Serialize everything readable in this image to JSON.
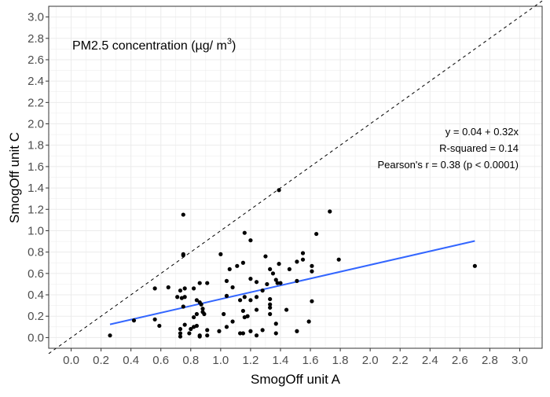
{
  "chart_data": {
    "type": "scatter",
    "title": "",
    "xlabel": "SmogOff unit A",
    "ylabel": "SmogOff unit C",
    "xlim": [
      -0.15,
      3.15
    ],
    "ylim": [
      -0.1,
      3.1
    ],
    "grid": true,
    "xticks": [
      "0.0",
      "0.2",
      "0.4",
      "0.6",
      "0.8",
      "1.0",
      "1.2",
      "1.4",
      "1.6",
      "1.8",
      "2.0",
      "2.2",
      "2.4",
      "2.6",
      "2.8",
      "3.0"
    ],
    "yticks": [
      "0.0",
      "0.2",
      "0.4",
      "0.6",
      "0.8",
      "1.0",
      "1.2",
      "1.4",
      "1.6",
      "1.8",
      "2.0",
      "2.2",
      "2.4",
      "2.6",
      "2.8",
      "3.0"
    ],
    "annotation_title": "PM2.5 concentration (µg/ m",
    "annotation_title_sup": "3",
    "annotation_title_end": ")",
    "stats": [
      "y = 0.04 + 0.32x",
      "R-squared = 0.14",
      "Pearson's r = 0.38 (p < 0.0001)"
    ],
    "identity_line": {
      "slope": 1,
      "intercept": 0,
      "style": "dashed",
      "color": "#000000"
    },
    "fit_line": {
      "intercept": 0.04,
      "slope": 0.32,
      "x_range": [
        0.26,
        2.7
      ],
      "color": "#3366FF"
    },
    "point_color": "#000000",
    "points": [
      [
        0.26,
        0.02
      ],
      [
        0.75,
        1.15
      ],
      [
        0.75,
        0.77
      ],
      [
        0.75,
        0.78
      ],
      [
        1.0,
        0.78
      ],
      [
        1.16,
        0.98
      ],
      [
        1.2,
        0.91
      ],
      [
        1.3,
        0.76
      ],
      [
        1.06,
        0.64
      ],
      [
        1.11,
        0.67
      ],
      [
        1.15,
        0.7
      ],
      [
        1.33,
        0.64
      ],
      [
        1.35,
        0.6
      ],
      [
        1.39,
        0.69
      ],
      [
        1.46,
        0.64
      ],
      [
        1.51,
        0.71
      ],
      [
        0.56,
        0.46
      ],
      [
        0.65,
        0.47
      ],
      [
        0.73,
        0.44
      ],
      [
        0.76,
        0.46
      ],
      [
        0.82,
        0.46
      ],
      [
        0.86,
        0.51
      ],
      [
        0.91,
        0.51
      ],
      [
        0.71,
        0.38
      ],
      [
        0.74,
        0.37
      ],
      [
        0.76,
        0.38
      ],
      [
        0.75,
        0.29
      ],
      [
        0.84,
        0.35
      ],
      [
        0.86,
        0.33
      ],
      [
        0.87,
        0.31
      ],
      [
        0.88,
        0.27
      ],
      [
        0.88,
        0.24
      ],
      [
        0.89,
        0.22
      ],
      [
        0.84,
        0.22
      ],
      [
        0.82,
        0.19
      ],
      [
        1.04,
        0.53
      ],
      [
        1.08,
        0.47
      ],
      [
        1.04,
        0.39
      ],
      [
        1.02,
        0.22
      ],
      [
        1.08,
        0.15
      ],
      [
        1.04,
        0.1
      ],
      [
        0.99,
        0.06
      ],
      [
        0.91,
        0.07
      ],
      [
        0.91,
        0.02
      ],
      [
        0.86,
        0.02
      ],
      [
        0.86,
        0.01
      ],
      [
        0.79,
        0.04
      ],
      [
        0.8,
        0.08
      ],
      [
        0.82,
        0.1
      ],
      [
        0.84,
        0.11
      ],
      [
        0.76,
        0.12
      ],
      [
        0.73,
        0.08
      ],
      [
        0.73,
        0.04
      ],
      [
        0.73,
        0.01
      ],
      [
        0.59,
        0.11
      ],
      [
        0.56,
        0.17
      ],
      [
        0.42,
        0.16
      ],
      [
        1.13,
        0.35
      ],
      [
        1.2,
        0.35
      ],
      [
        1.16,
        0.38
      ],
      [
        1.24,
        0.52
      ],
      [
        1.24,
        0.38
      ],
      [
        1.31,
        0.5
      ],
      [
        1.37,
        0.54
      ],
      [
        1.38,
        0.51
      ],
      [
        1.4,
        0.51
      ],
      [
        1.15,
        0.25
      ],
      [
        1.16,
        0.19
      ],
      [
        1.18,
        0.2
      ],
      [
        1.24,
        0.26
      ],
      [
        1.33,
        0.36
      ],
      [
        1.33,
        0.31
      ],
      [
        1.33,
        0.28
      ],
      [
        1.33,
        0.22
      ],
      [
        1.44,
        0.26
      ],
      [
        1.37,
        0.13
      ],
      [
        1.13,
        0.04
      ],
      [
        1.15,
        0.04
      ],
      [
        1.2,
        0.06
      ],
      [
        1.24,
        0.02
      ],
      [
        1.28,
        0.07
      ],
      [
        1.37,
        0.04
      ],
      [
        1.51,
        0.06
      ],
      [
        1.39,
        1.38
      ],
      [
        1.73,
        1.18
      ],
      [
        1.64,
        0.97
      ],
      [
        1.79,
        0.73
      ],
      [
        1.55,
        0.79
      ],
      [
        1.55,
        0.73
      ],
      [
        1.61,
        0.67
      ],
      [
        1.61,
        0.62
      ],
      [
        1.51,
        0.53
      ],
      [
        1.61,
        0.34
      ],
      [
        1.59,
        0.15
      ],
      [
        2.7,
        0.67
      ],
      [
        1.2,
        0.55
      ],
      [
        1.28,
        0.44
      ]
    ]
  }
}
